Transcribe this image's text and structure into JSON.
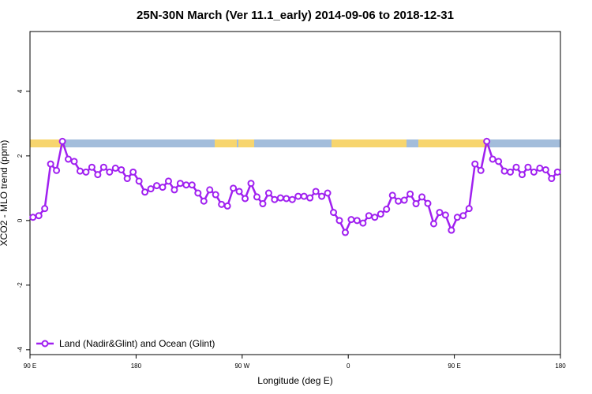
{
  "chart_data": {
    "type": "line",
    "title": "25N-30N March (Ver 11.1_early)   2014-09-06 to 2018-12-31",
    "x_label": "Longitude (deg E)",
    "y_label": "XCO2 - MLO trend (ppm)",
    "x": [
      92.5,
      97.5,
      102.5,
      107.5,
      112.5,
      117.5,
      122.5,
      127.5,
      132.5,
      137.5,
      142.5,
      147.5,
      152.5,
      157.5,
      162.5,
      167.5,
      172.5,
      177.5,
      182.5,
      187.5,
      192.5,
      197.5,
      202.5,
      207.5,
      212.5,
      217.5,
      222.5,
      227.5,
      232.5,
      237.5,
      242.5,
      247.5,
      252.5,
      257.5,
      262.5,
      267.5,
      272.5,
      277.5,
      282.5,
      287.5,
      292.5,
      297.5,
      302.5,
      307.5,
      312.5,
      317.5,
      322.5,
      327.5,
      332.5,
      337.5,
      342.5,
      347.5,
      352.5,
      357.5,
      362.5,
      367.5,
      372.5,
      377.5,
      382.5,
      387.5,
      392.5,
      397.5,
      402.5,
      407.5,
      412.5,
      417.5,
      422.5,
      427.5,
      432.5,
      437.5,
      442.5,
      447.5,
      452.5,
      457.5,
      462.5,
      467.5,
      472.5,
      477.5,
      482.5,
      487.5,
      492.5,
      497.5,
      502.5,
      507.5,
      512.5,
      517.5,
      522.5,
      527.5,
      532.5,
      537.5
    ],
    "series": [
      {
        "name": "Land (Nadir&Glint) and Ocean (Glint)",
        "color": "#a020f0",
        "values": [
          0.1,
          0.15,
          0.37,
          1.75,
          1.55,
          2.45,
          1.9,
          1.83,
          1.53,
          1.5,
          1.65,
          1.42,
          1.65,
          1.5,
          1.62,
          1.57,
          1.3,
          1.5,
          1.22,
          0.88,
          0.98,
          1.08,
          1.03,
          1.22,
          0.95,
          1.15,
          1.1,
          1.1,
          0.85,
          0.6,
          0.95,
          0.8,
          0.5,
          0.45,
          1.0,
          0.9,
          0.68,
          1.15,
          0.73,
          0.52,
          0.85,
          0.65,
          0.7,
          0.68,
          0.65,
          0.75,
          0.75,
          0.7,
          0.9,
          0.75,
          0.85,
          0.25,
          0.0,
          -0.37,
          0.03,
          0.0,
          -0.08,
          0.15,
          0.1,
          0.2,
          0.35,
          0.78,
          0.6,
          0.63,
          0.82,
          0.52,
          0.73,
          0.53,
          -0.1,
          0.25,
          0.17,
          -0.3,
          0.1,
          0.15,
          0.37,
          1.75,
          1.55,
          2.45,
          1.9,
          1.83,
          1.53,
          1.5,
          1.65,
          1.42,
          1.65,
          1.5,
          1.62,
          1.57,
          1.3,
          1.5
        ]
      }
    ],
    "xlim": [
      90,
      540
    ],
    "xticks": [
      {
        "value": 90,
        "label": "90 E"
      },
      180,
      {
        "value": 270,
        "label": "90 W"
      },
      {
        "value": 360,
        "label": "0"
      },
      {
        "value": 450,
        "label": "90 E"
      },
      {
        "value": 540,
        "label": "180"
      }
    ],
    "ylim": [
      -4.15,
      5.85
    ],
    "yticks": [
      -4,
      -2,
      0,
      2,
      4
    ],
    "legend": "bottom-left"
  }
}
